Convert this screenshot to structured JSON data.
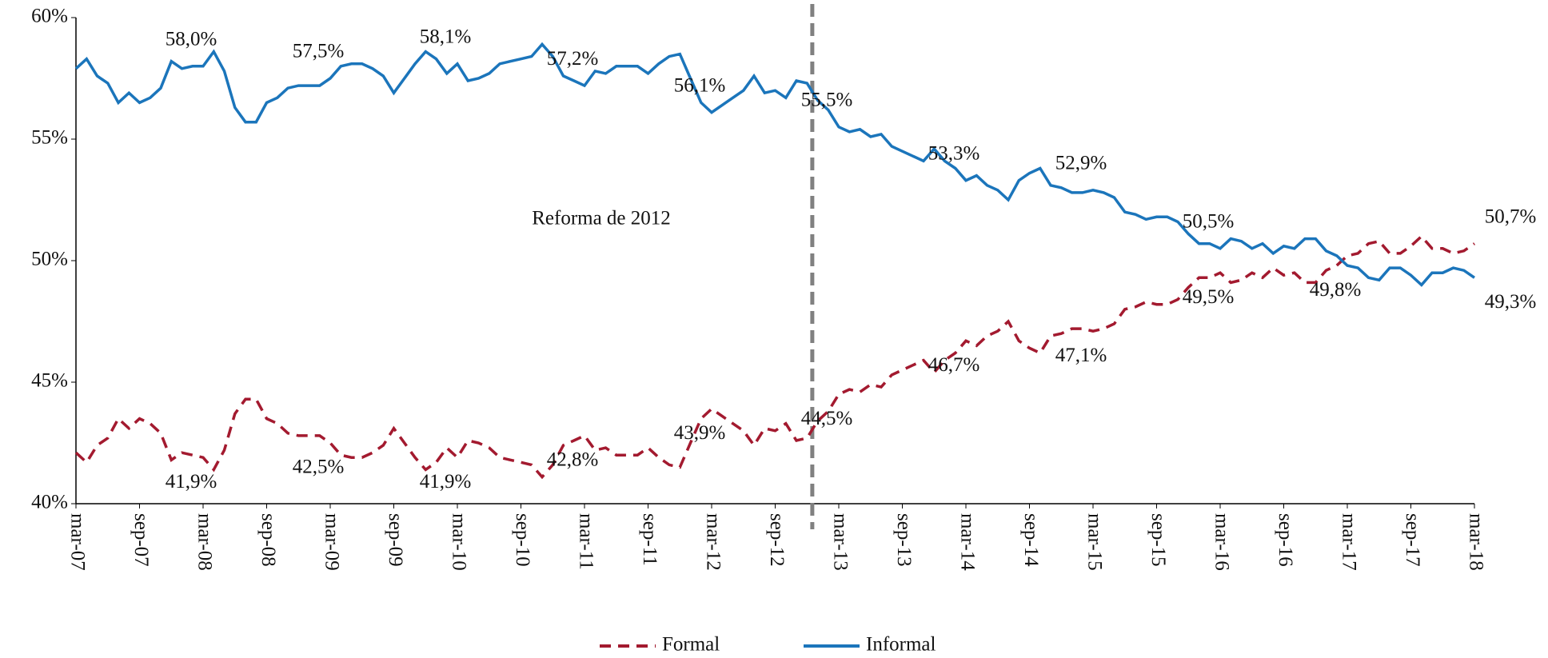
{
  "chart_data": {
    "type": "line",
    "annotation": "Reforma de 2012",
    "categories": [
      "mar-07",
      null,
      null,
      null,
      null,
      null,
      "sep-07",
      null,
      null,
      null,
      null,
      null,
      "mar-08",
      null,
      null,
      null,
      null,
      null,
      "sep-08",
      null,
      null,
      null,
      null,
      null,
      "mar-09",
      null,
      null,
      null,
      null,
      null,
      "sep-09",
      null,
      null,
      null,
      null,
      null,
      "mar-10",
      null,
      null,
      null,
      null,
      null,
      "sep-10",
      null,
      null,
      null,
      null,
      null,
      "mar-11",
      null,
      null,
      null,
      null,
      null,
      "sep-11",
      null,
      null,
      null,
      null,
      null,
      "mar-12",
      null,
      null,
      null,
      null,
      null,
      "sep-12",
      null,
      null,
      null,
      null,
      null,
      "mar-13",
      null,
      null,
      null,
      null,
      null,
      "sep-13",
      null,
      null,
      null,
      null,
      null,
      "mar-14",
      null,
      null,
      null,
      null,
      null,
      "sep-14",
      null,
      null,
      null,
      null,
      null,
      "mar-15",
      null,
      null,
      null,
      null,
      null,
      "sep-15",
      null,
      null,
      null,
      null,
      null,
      "mar-16",
      null,
      null,
      null,
      null,
      null,
      "sep-16",
      null,
      null,
      null,
      null,
      null,
      "mar-17",
      null,
      null,
      null,
      null,
      null,
      "sep-17",
      null,
      null,
      null,
      null,
      null,
      "mar-18"
    ],
    "series": [
      {
        "name": "Formal",
        "color": "#a31a2f",
        "dash": true,
        "values": [
          42.1,
          41.7,
          42.4,
          42.7,
          43.5,
          43.1,
          43.5,
          43.3,
          42.9,
          41.8,
          42.1,
          42.0,
          41.9,
          41.4,
          42.2,
          43.7,
          44.3,
          44.3,
          43.5,
          43.3,
          42.9,
          42.8,
          42.8,
          42.8,
          42.5,
          42.0,
          41.9,
          41.9,
          42.1,
          42.4,
          43.1,
          42.5,
          41.9,
          41.4,
          41.7,
          42.3,
          41.9,
          42.6,
          42.5,
          42.3,
          41.9,
          41.8,
          41.7,
          41.6,
          41.1,
          41.6,
          42.4,
          42.6,
          42.8,
          42.2,
          42.3,
          42.0,
          42.0,
          42.0,
          42.3,
          41.9,
          41.6,
          41.5,
          42.5,
          43.5,
          43.9,
          43.6,
          43.3,
          43.0,
          42.4,
          43.1,
          43.0,
          43.3,
          42.6,
          42.7,
          43.4,
          43.8,
          44.5,
          44.7,
          44.6,
          44.9,
          44.8,
          45.3,
          45.5,
          45.7,
          45.9,
          45.4,
          45.9,
          46.2,
          46.7,
          46.5,
          46.9,
          47.1,
          47.5,
          46.7,
          46.4,
          46.2,
          46.9,
          47.0,
          47.2,
          47.2,
          47.1,
          47.2,
          47.4,
          48.0,
          48.1,
          48.3,
          48.2,
          48.2,
          48.4,
          48.9,
          49.3,
          49.3,
          49.5,
          49.1,
          49.2,
          49.5,
          49.3,
          49.7,
          49.4,
          49.5,
          49.1,
          49.1,
          49.6,
          49.8,
          50.2,
          50.3,
          50.7,
          50.8,
          50.3,
          50.3,
          50.6,
          51.0,
          50.5,
          50.5,
          50.3,
          50.4,
          50.7
        ],
        "value_labels": [
          null,
          null,
          null,
          null,
          null,
          null,
          null,
          null,
          null,
          null,
          null,
          null,
          "41,9%",
          null,
          null,
          null,
          null,
          null,
          null,
          null,
          null,
          null,
          null,
          null,
          "42,5%",
          null,
          null,
          null,
          null,
          null,
          null,
          null,
          null,
          null,
          null,
          null,
          "41,9%",
          null,
          null,
          null,
          null,
          null,
          null,
          null,
          null,
          null,
          null,
          null,
          "42,8%",
          null,
          null,
          null,
          null,
          null,
          null,
          null,
          null,
          null,
          null,
          null,
          "43,9%",
          null,
          null,
          null,
          null,
          null,
          null,
          null,
          null,
          null,
          null,
          null,
          "44,5%",
          null,
          null,
          null,
          null,
          null,
          null,
          null,
          null,
          null,
          null,
          null,
          "46,7%",
          null,
          null,
          null,
          null,
          null,
          null,
          null,
          null,
          null,
          null,
          null,
          "47,1%",
          null,
          null,
          null,
          null,
          null,
          null,
          null,
          null,
          null,
          null,
          null,
          "49,5%",
          null,
          null,
          null,
          null,
          null,
          null,
          null,
          null,
          null,
          null,
          null,
          null,
          null,
          null,
          null,
          null,
          null,
          null,
          null,
          null,
          null,
          null,
          null,
          "50,7%"
        ]
      },
      {
        "name": "Informal",
        "color": "#1b75bb",
        "dash": false,
        "values": [
          57.9,
          58.3,
          57.6,
          57.3,
          56.5,
          56.9,
          56.5,
          56.7,
          57.1,
          58.2,
          57.9,
          58.0,
          58.0,
          58.6,
          57.8,
          56.3,
          55.7,
          55.7,
          56.5,
          56.7,
          57.1,
          57.2,
          57.2,
          57.2,
          57.5,
          58.0,
          58.1,
          58.1,
          57.9,
          57.6,
          56.9,
          57.5,
          58.1,
          58.6,
          58.3,
          57.7,
          58.1,
          57.4,
          57.5,
          57.7,
          58.1,
          58.2,
          58.3,
          58.4,
          58.9,
          58.4,
          57.6,
          57.4,
          57.2,
          57.8,
          57.7,
          58.0,
          58.0,
          58.0,
          57.7,
          58.1,
          58.4,
          58.5,
          57.5,
          56.5,
          56.1,
          56.4,
          56.7,
          57.0,
          57.6,
          56.9,
          57.0,
          56.7,
          57.4,
          57.3,
          56.6,
          56.2,
          55.5,
          55.3,
          55.4,
          55.1,
          55.2,
          54.7,
          54.5,
          54.3,
          54.1,
          54.6,
          54.1,
          53.8,
          53.3,
          53.5,
          53.1,
          52.9,
          52.5,
          53.3,
          53.6,
          53.8,
          53.1,
          53.0,
          52.8,
          52.8,
          52.9,
          52.8,
          52.6,
          52.0,
          51.9,
          51.7,
          51.8,
          51.8,
          51.6,
          51.1,
          50.7,
          50.7,
          50.5,
          50.9,
          50.8,
          50.5,
          50.7,
          50.3,
          50.6,
          50.5,
          50.9,
          50.9,
          50.4,
          50.2,
          49.8,
          49.7,
          49.3,
          49.2,
          49.7,
          49.7,
          49.4,
          49.0,
          49.5,
          49.5,
          49.7,
          49.6,
          49.3
        ],
        "value_labels": [
          null,
          null,
          null,
          null,
          null,
          null,
          null,
          null,
          null,
          null,
          null,
          null,
          "58,0%",
          null,
          null,
          null,
          null,
          null,
          null,
          null,
          null,
          null,
          null,
          null,
          "57,5%",
          null,
          null,
          null,
          null,
          null,
          null,
          null,
          null,
          null,
          null,
          null,
          "58,1%",
          null,
          null,
          null,
          null,
          null,
          null,
          null,
          null,
          null,
          null,
          null,
          "57,2%",
          null,
          null,
          null,
          null,
          null,
          null,
          null,
          null,
          null,
          null,
          null,
          "56,1%",
          null,
          null,
          null,
          null,
          null,
          null,
          null,
          null,
          null,
          null,
          null,
          "55,5%",
          null,
          null,
          null,
          null,
          null,
          null,
          null,
          null,
          null,
          null,
          null,
          "53,3%",
          null,
          null,
          null,
          null,
          null,
          null,
          null,
          null,
          null,
          null,
          null,
          "52,9%",
          null,
          null,
          null,
          null,
          null,
          null,
          null,
          null,
          null,
          null,
          null,
          "50,5%",
          null,
          null,
          null,
          null,
          null,
          null,
          null,
          null,
          null,
          null,
          null,
          "49,8%",
          null,
          null,
          null,
          null,
          null,
          null,
          null,
          null,
          null,
          null,
          null,
          "49,3%"
        ]
      }
    ],
    "ylim": [
      40,
      60
    ],
    "yticks": [
      {
        "value": 40,
        "label": "40%"
      },
      {
        "value": 45,
        "label": "45%"
      },
      {
        "value": 50,
        "label": "50%"
      },
      {
        "value": 55,
        "label": "55%"
      },
      {
        "value": 60,
        "label": "60%"
      }
    ],
    "grid": false,
    "legend": "bottom"
  }
}
